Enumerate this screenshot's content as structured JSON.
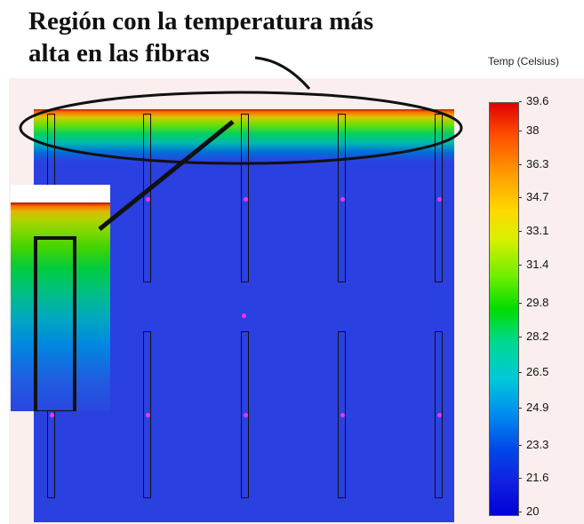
{
  "heading": {
    "line1": "Región con la temperatura más",
    "line2": "alta en las fibras"
  },
  "legend": {
    "title": "Temp (Celsius)",
    "ticks": [
      "39.6",
      "38",
      "36.3",
      "34.7",
      "33.1",
      "31.4",
      "29.8",
      "28.2",
      "26.5",
      "24.9",
      "23.3",
      "21.6",
      "20"
    ],
    "colors": {
      "max": "#e00000",
      "mid": "#00dc00",
      "min": "#0000d8"
    }
  },
  "plot": {
    "background_color": "#2a40e0",
    "fiber_outline_color": "#111111",
    "marker_color": "#ff30ff"
  }
}
